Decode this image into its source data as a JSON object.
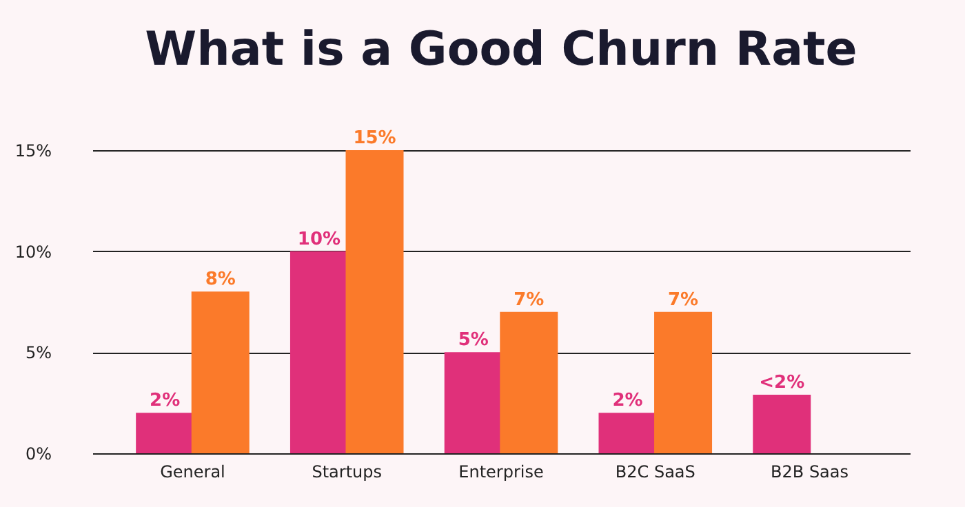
{
  "chart_data": {
    "type": "bar",
    "title": "What is a Good Churn Rate",
    "categories": [
      "General",
      "Startups",
      "Enterprise",
      "B2C SaaS",
      "B2B Saas"
    ],
    "series": [
      {
        "color": "#e0307a",
        "values": [
          2,
          10,
          5,
          2,
          2.9
        ],
        "value_labels": [
          "2%",
          "10%",
          "5%",
          "2%",
          "<2%"
        ]
      },
      {
        "color": "#fb7a2a",
        "values": [
          8,
          15,
          7,
          7,
          null
        ],
        "value_labels": [
          "8%",
          "15%",
          "7%",
          "7%",
          null
        ]
      }
    ],
    "ylim": [
      0,
      15
    ],
    "yticks": [
      {
        "value": 0,
        "label": "0%"
      },
      {
        "value": 5,
        "label": "5%"
      },
      {
        "value": 10,
        "label": "10%"
      },
      {
        "value": 15,
        "label": "15%"
      }
    ],
    "grid": "y"
  }
}
